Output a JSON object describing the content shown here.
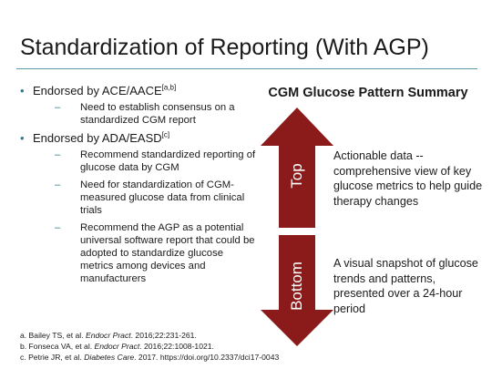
{
  "slide": {
    "title": "Standardization of Reporting (With AGP)",
    "bullets": [
      {
        "text": "Endorsed by ACE/AACE",
        "sup": "[a,b]",
        "subs": [
          "Need to establish consensus on a standardized CGM report"
        ]
      },
      {
        "text": "Endorsed by ADA/EASD",
        "sup": "[c]",
        "subs": [
          "Recommend standardized reporting of glucose data by CGM",
          "Need for standardization of CGM-measured glucose data from clinical trials",
          "Recommend the AGP as a potential universal software report that could be adopted to standardize glucose metrics among devices and manufacturers"
        ]
      }
    ],
    "summary": {
      "title": "CGM Glucose Pattern Summary",
      "top_label": "Top",
      "top_desc": "Actionable data -- comprehensive view of key glucose metrics to help guide therapy changes",
      "bottom_label": "Bottom",
      "bottom_desc": "A visual snapshot of glucose trends and patterns, presented over a 24-hour period",
      "arrow_color": "#8b1a1a"
    },
    "references": [
      {
        "prefix": "a. Bailey TS, et al. ",
        "journal": "Endocr Pract",
        "suffix": ". 2016;22:231-261."
      },
      {
        "prefix": "b. Fonseca VA, et al. ",
        "journal": "Endocr Pract",
        "suffix": ". 2016;22:1008-1021."
      },
      {
        "prefix": "c. Petrie JR, et al. ",
        "journal": "Diabetes Care",
        "suffix": ". 2017. https://doi.org/10.2337/dci17-0043"
      }
    ]
  }
}
